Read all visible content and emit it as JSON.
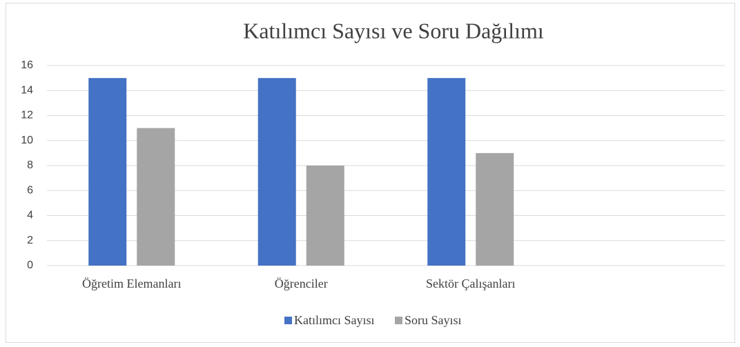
{
  "chart_data": {
    "type": "bar",
    "title": "Katılımcı Sayısı ve Soru Dağılımı",
    "categories": [
      "Öğretim Elemanları",
      "Öğrenciler",
      "Sektör Çalışanları",
      null
    ],
    "series": [
      {
        "name": "Katılımcı Sayısı",
        "color": "#4472c4",
        "values": [
          15,
          15,
          15,
          null
        ]
      },
      {
        "name": "Soru Sayısı",
        "color": "#a5a5a5",
        "values": [
          11,
          8,
          9,
          null
        ]
      }
    ],
    "ylim": [
      0,
      16
    ],
    "yticks": [
      0,
      2,
      4,
      6,
      8,
      10,
      12,
      14,
      16
    ],
    "grid": true,
    "legend": "bottom"
  }
}
